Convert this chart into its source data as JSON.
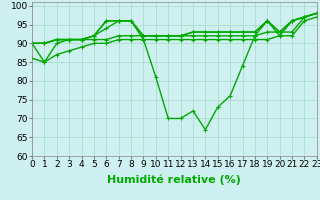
{
  "title": "",
  "xlabel": "Humidité relative (%)",
  "ylabel": "",
  "background_color": "#cff0f0",
  "grid_color": "#aaddcc",
  "line_color": "#00aa00",
  "xlim": [
    0,
    23
  ],
  "ylim": [
    60,
    101
  ],
  "yticks": [
    60,
    65,
    70,
    75,
    80,
    85,
    90,
    95,
    100
  ],
  "xticks": [
    0,
    1,
    2,
    3,
    4,
    5,
    6,
    7,
    8,
    9,
    10,
    11,
    12,
    13,
    14,
    15,
    16,
    17,
    18,
    19,
    20,
    21,
    22,
    23
  ],
  "series": [
    [
      90,
      85,
      90,
      91,
      91,
      92,
      96,
      96,
      96,
      91,
      81,
      70,
      70,
      72,
      67,
      73,
      76,
      84,
      92,
      96,
      92,
      96,
      97,
      98
    ],
    [
      90,
      90,
      91,
      91,
      91,
      92,
      96,
      96,
      96,
      92,
      92,
      92,
      92,
      93,
      93,
      93,
      93,
      93,
      93,
      96,
      93,
      96,
      97,
      98
    ],
    [
      90,
      90,
      91,
      91,
      91,
      92,
      94,
      96,
      96,
      92,
      92,
      92,
      92,
      93,
      93,
      93,
      93,
      93,
      93,
      96,
      93,
      96,
      97,
      98
    ],
    [
      90,
      90,
      91,
      91,
      91,
      91,
      91,
      92,
      92,
      92,
      92,
      92,
      92,
      92,
      92,
      92,
      92,
      92,
      92,
      93,
      93,
      93,
      97,
      98
    ],
    [
      86,
      85,
      87,
      88,
      89,
      90,
      90,
      91,
      91,
      91,
      91,
      91,
      91,
      91,
      91,
      91,
      91,
      91,
      91,
      91,
      92,
      92,
      96,
      97
    ]
  ],
  "marker": "+",
  "markersize": 3,
  "linewidth": 1.0,
  "xlabel_fontsize": 8,
  "tick_fontsize": 6.5
}
